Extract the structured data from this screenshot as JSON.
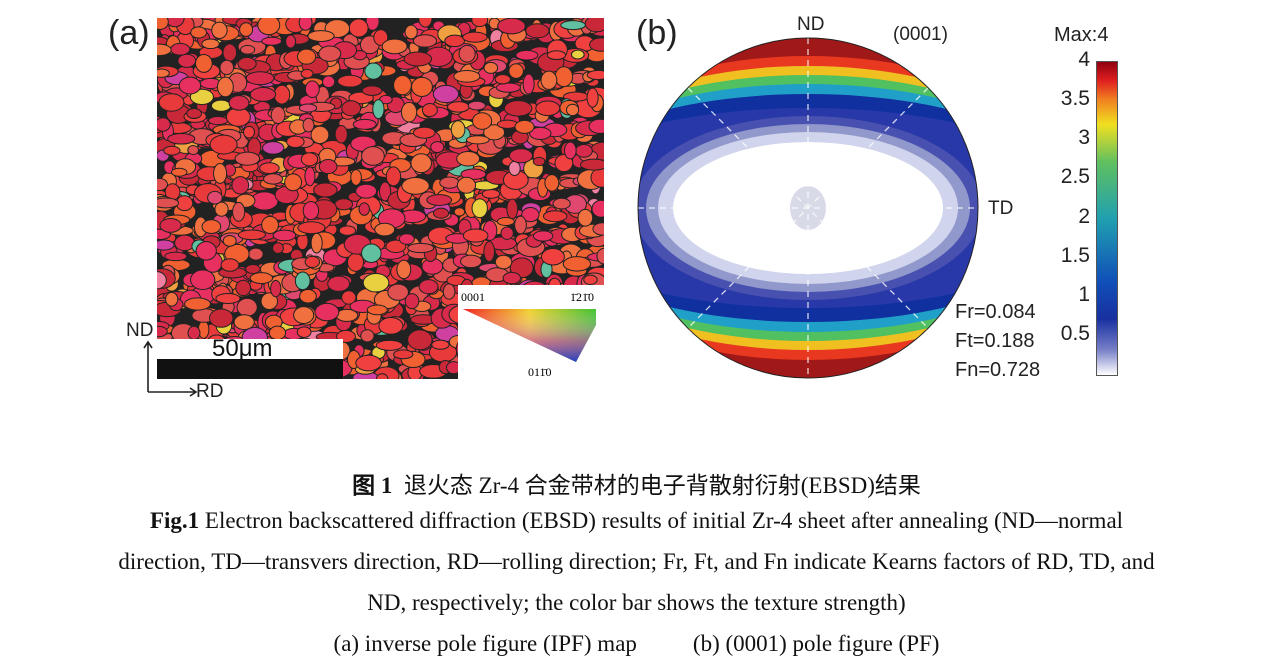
{
  "panel_a": {
    "label": "(a)",
    "scale_bar": "50μm",
    "axis_nd": "ND",
    "axis_rd": "RD",
    "ipf_legend": {
      "corner_0001": "0001",
      "corner_12_10": "1̄21̄0",
      "corner_01_10": "011̄0"
    }
  },
  "panel_b": {
    "label": "(b)",
    "plane": "(0001)",
    "nd": "ND",
    "td": "TD",
    "factors": [
      "Fr=0.084",
      "Ft=0.188",
      "Fn=0.728"
    ],
    "colorbar": {
      "title": "Max:4",
      "ticks": [
        "4",
        "3.5",
        "3",
        "2.5",
        "2",
        "1.5",
        "1",
        "0.5"
      ],
      "min": 0,
      "max": 4
    }
  },
  "caption": {
    "zh_prefix": "图 1",
    "zh": "退火态 Zr-4 合金带材的电子背散射衍射(EBSD)结果",
    "en_prefix": "Fig.1",
    "en_line1": " Electron backscattered diffraction (EBSD) results of initial Zr-4 sheet after annealing (ND—normal",
    "en_line2": "direction, TD—transvers direction, RD—rolling direction; Fr, Ft, and Fn indicate Kearns factors of RD, TD, and",
    "en_line3": "ND, respectively; the color bar shows the texture strength)",
    "sub_a": "(a) inverse pole figure (IPF) map",
    "sub_b": "(b) (0001) pole figure (PF)"
  }
}
